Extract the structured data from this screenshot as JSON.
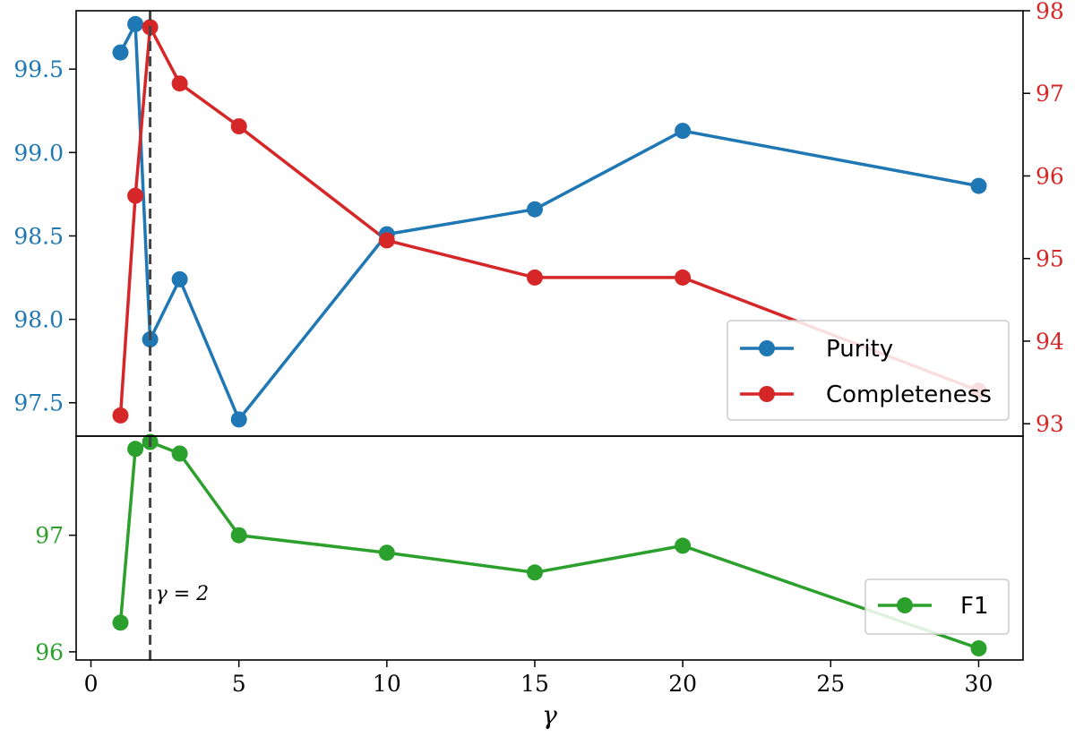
{
  "chart_data": {
    "type": "line",
    "xlabel": "γ",
    "x_ticks": [
      0,
      5,
      10,
      15,
      20,
      25,
      30
    ],
    "xlim": [
      -0.5,
      31.5
    ],
    "annotation": {
      "text": "γ = 2",
      "x": 2
    },
    "colors": {
      "purity": "#1f77b4",
      "completeness": "#d62728",
      "f1": "#2ca02c",
      "vline": "#444444"
    },
    "top_panel": {
      "left_axis": {
        "ylim": [
          97.3,
          99.85
        ],
        "ticks": [
          97.5,
          98.0,
          98.5,
          99.0,
          99.5
        ],
        "tick_labels": [
          "97.5",
          "98.0",
          "98.5",
          "99.0",
          "99.5"
        ]
      },
      "right_axis": {
        "ylim": [
          92.85,
          98.0
        ],
        "ticks": [
          93,
          94,
          95,
          96,
          97,
          98
        ],
        "tick_labels": [
          "93",
          "94",
          "95",
          "96",
          "97",
          "98"
        ]
      },
      "legend_position": "lower-right",
      "series": [
        {
          "name": "Purity",
          "axis": "left",
          "x": [
            1,
            1.5,
            2,
            3,
            5,
            10,
            15,
            20,
            30
          ],
          "y": [
            99.6,
            99.77,
            97.88,
            98.24,
            97.4,
            98.51,
            98.66,
            99.13,
            98.8
          ]
        },
        {
          "name": "Completeness",
          "axis": "right",
          "x": [
            1,
            1.5,
            2,
            3,
            5,
            10,
            15,
            20,
            30
          ],
          "y": [
            93.1,
            95.76,
            97.8,
            97.12,
            96.6,
            95.22,
            94.77,
            94.77,
            93.4
          ]
        }
      ]
    },
    "bottom_panel": {
      "ylim": [
        95.93,
        97.85
      ],
      "ticks": [
        96,
        97
      ],
      "tick_labels": [
        "96",
        "97"
      ],
      "legend_position": "lower-right",
      "series": [
        {
          "name": "F1",
          "x": [
            1,
            1.5,
            2,
            3,
            5,
            10,
            15,
            20,
            30
          ],
          "y": [
            96.25,
            97.74,
            97.8,
            97.7,
            97.0,
            96.85,
            96.68,
            96.91,
            96.03
          ]
        }
      ]
    }
  }
}
